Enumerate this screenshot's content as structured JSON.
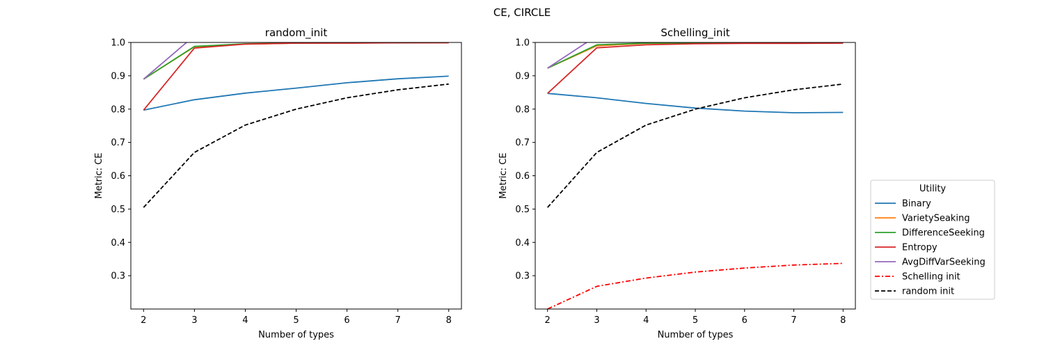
{
  "figure": {
    "title": "CE, CIRCLE"
  },
  "legend": {
    "title": "Utility",
    "placement": "center-right outside",
    "entries": [
      {
        "label": "Binary",
        "color": "#1f77b4",
        "style": "solid"
      },
      {
        "label": "VarietySeaking",
        "color": "#ff7f0e",
        "style": "solid"
      },
      {
        "label": "DifferenceSeeking",
        "color": "#2ca02c",
        "style": "solid"
      },
      {
        "label": "Entropy",
        "color": "#d62728",
        "style": "solid"
      },
      {
        "label": "AvgDiffVarSeeking",
        "color": "#9467bd",
        "style": "solid"
      },
      {
        "label": "Schelling init",
        "color": "#ff0000",
        "style": "dashdot"
      },
      {
        "label": "random init",
        "color": "#000000",
        "style": "dashed"
      }
    ]
  },
  "chart_data": [
    {
      "type": "line",
      "title": "random_init",
      "xlabel": "Number of types",
      "ylabel": "Metric: CE",
      "x": [
        2,
        3,
        4,
        5,
        6,
        7,
        8
      ],
      "xlim": [
        1.75,
        8.25
      ],
      "ylim": [
        0.2,
        1.0
      ],
      "xticks": [
        2,
        3,
        4,
        5,
        6,
        7,
        8
      ],
      "yticks": [
        "0.3",
        "0.4",
        "0.5",
        "0.6",
        "0.7",
        "0.8",
        "0.9",
        "1.0"
      ],
      "grid": false,
      "series": [
        {
          "name": "Binary",
          "color": "#1f77b4",
          "style": "solid",
          "values": [
            0.797,
            0.828,
            0.848,
            0.863,
            0.879,
            0.891,
            0.899
          ]
        },
        {
          "name": "VarietySeaking",
          "color": "#ff7f0e",
          "style": "solid",
          "values": [
            0.89,
            0.987,
            0.995,
            0.998,
            0.999,
            0.999,
            1.0
          ]
        },
        {
          "name": "DifferenceSeeking",
          "color": "#2ca02c",
          "style": "solid",
          "values": [
            0.89,
            0.988,
            0.996,
            0.998,
            0.999,
            0.999,
            1.0
          ]
        },
        {
          "name": "Entropy",
          "color": "#d62728",
          "style": "solid",
          "values": [
            0.797,
            0.983,
            0.995,
            0.998,
            0.998,
            0.999,
            0.999
          ]
        },
        {
          "name": "AvgDiffVarSeeking",
          "color": "#9467bd",
          "style": "solid",
          "values": [
            0.89,
            1.02,
            1.03,
            1.03,
            1.03,
            1.03,
            1.03
          ]
        },
        {
          "name": "random init",
          "color": "#000000",
          "style": "dashed",
          "values": [
            0.505,
            0.67,
            0.752,
            0.8,
            0.834,
            0.858,
            0.875
          ]
        }
      ]
    },
    {
      "type": "line",
      "title": "Schelling_init",
      "xlabel": "Number of types",
      "ylabel": "Metric: CE",
      "x": [
        2,
        3,
        4,
        5,
        6,
        7,
        8
      ],
      "xlim": [
        1.75,
        8.25
      ],
      "ylim": [
        0.2,
        1.0
      ],
      "xticks": [
        2,
        3,
        4,
        5,
        6,
        7,
        8
      ],
      "yticks": [
        "0.3",
        "0.4",
        "0.5",
        "0.6",
        "0.7",
        "0.8",
        "0.9",
        "1.0"
      ],
      "grid": false,
      "series": [
        {
          "name": "Binary",
          "color": "#1f77b4",
          "style": "solid",
          "values": [
            0.847,
            0.834,
            0.817,
            0.803,
            0.794,
            0.789,
            0.79
          ]
        },
        {
          "name": "VarietySeaking",
          "color": "#ff7f0e",
          "style": "solid",
          "values": [
            0.923,
            0.99,
            0.997,
            0.998,
            0.999,
            0.999,
            0.999
          ]
        },
        {
          "name": "DifferenceSeeking",
          "color": "#2ca02c",
          "style": "solid",
          "values": [
            0.923,
            0.993,
            0.998,
            0.999,
            0.999,
            0.999,
            1.0
          ]
        },
        {
          "name": "Entropy",
          "color": "#d62728",
          "style": "solid",
          "values": [
            0.847,
            0.984,
            0.993,
            0.996,
            0.997,
            0.997,
            0.998
          ]
        },
        {
          "name": "AvgDiffVarSeeking",
          "color": "#9467bd",
          "style": "solid",
          "values": [
            0.923,
            1.02,
            1.03,
            1.03,
            1.03,
            1.03,
            1.03
          ]
        },
        {
          "name": "Schelling init",
          "color": "#ff0000",
          "style": "dashdot",
          "values": [
            0.2,
            0.268,
            0.293,
            0.311,
            0.323,
            0.332,
            0.337
          ]
        },
        {
          "name": "random init",
          "color": "#000000",
          "style": "dashed",
          "values": [
            0.505,
            0.67,
            0.752,
            0.8,
            0.834,
            0.858,
            0.875
          ]
        }
      ]
    }
  ]
}
